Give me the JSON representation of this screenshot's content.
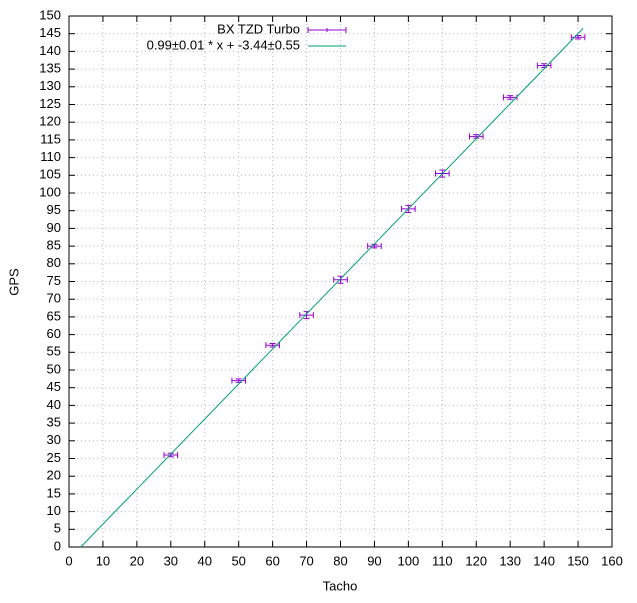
{
  "chart_data": {
    "type": "errorbar",
    "xlabel": "Tacho",
    "ylabel": "GPS",
    "xlim": [
      0,
      160
    ],
    "ylim": [
      0,
      150
    ],
    "xticks": [
      0,
      10,
      20,
      30,
      40,
      50,
      60,
      70,
      80,
      90,
      100,
      110,
      120,
      130,
      140,
      150,
      160
    ],
    "yticks": [
      0,
      5,
      10,
      15,
      20,
      25,
      30,
      35,
      40,
      45,
      50,
      55,
      60,
      65,
      70,
      75,
      80,
      85,
      90,
      95,
      100,
      105,
      110,
      115,
      120,
      125,
      130,
      135,
      140,
      145,
      150
    ],
    "grid": true,
    "legend": "top",
    "series": [
      {
        "name": "BX TZD Turbo",
        "color": "#9400d3",
        "mode": "errorbars",
        "x": [
          30,
          50,
          60,
          70,
          80,
          90,
          100,
          110,
          120,
          130,
          140,
          150
        ],
        "values": [
          26,
          47,
          57,
          65.5,
          75.5,
          85,
          95.5,
          105.5,
          116,
          127,
          136,
          144
        ],
        "xerr": [
          2,
          2,
          2,
          2,
          2,
          2,
          2,
          2,
          2,
          2,
          2,
          2
        ],
        "yerr": [
          0.5,
          0.5,
          0.5,
          1,
          1,
          0.5,
          1,
          1,
          0.5,
          0.5,
          0.5,
          0.5
        ]
      },
      {
        "name": "0.99±0.01 * x + -3.44±0.55",
        "color": "#009e73",
        "mode": "line",
        "x": [
          3.47,
          151.5
        ],
        "values": [
          0,
          146.5
        ]
      }
    ]
  }
}
